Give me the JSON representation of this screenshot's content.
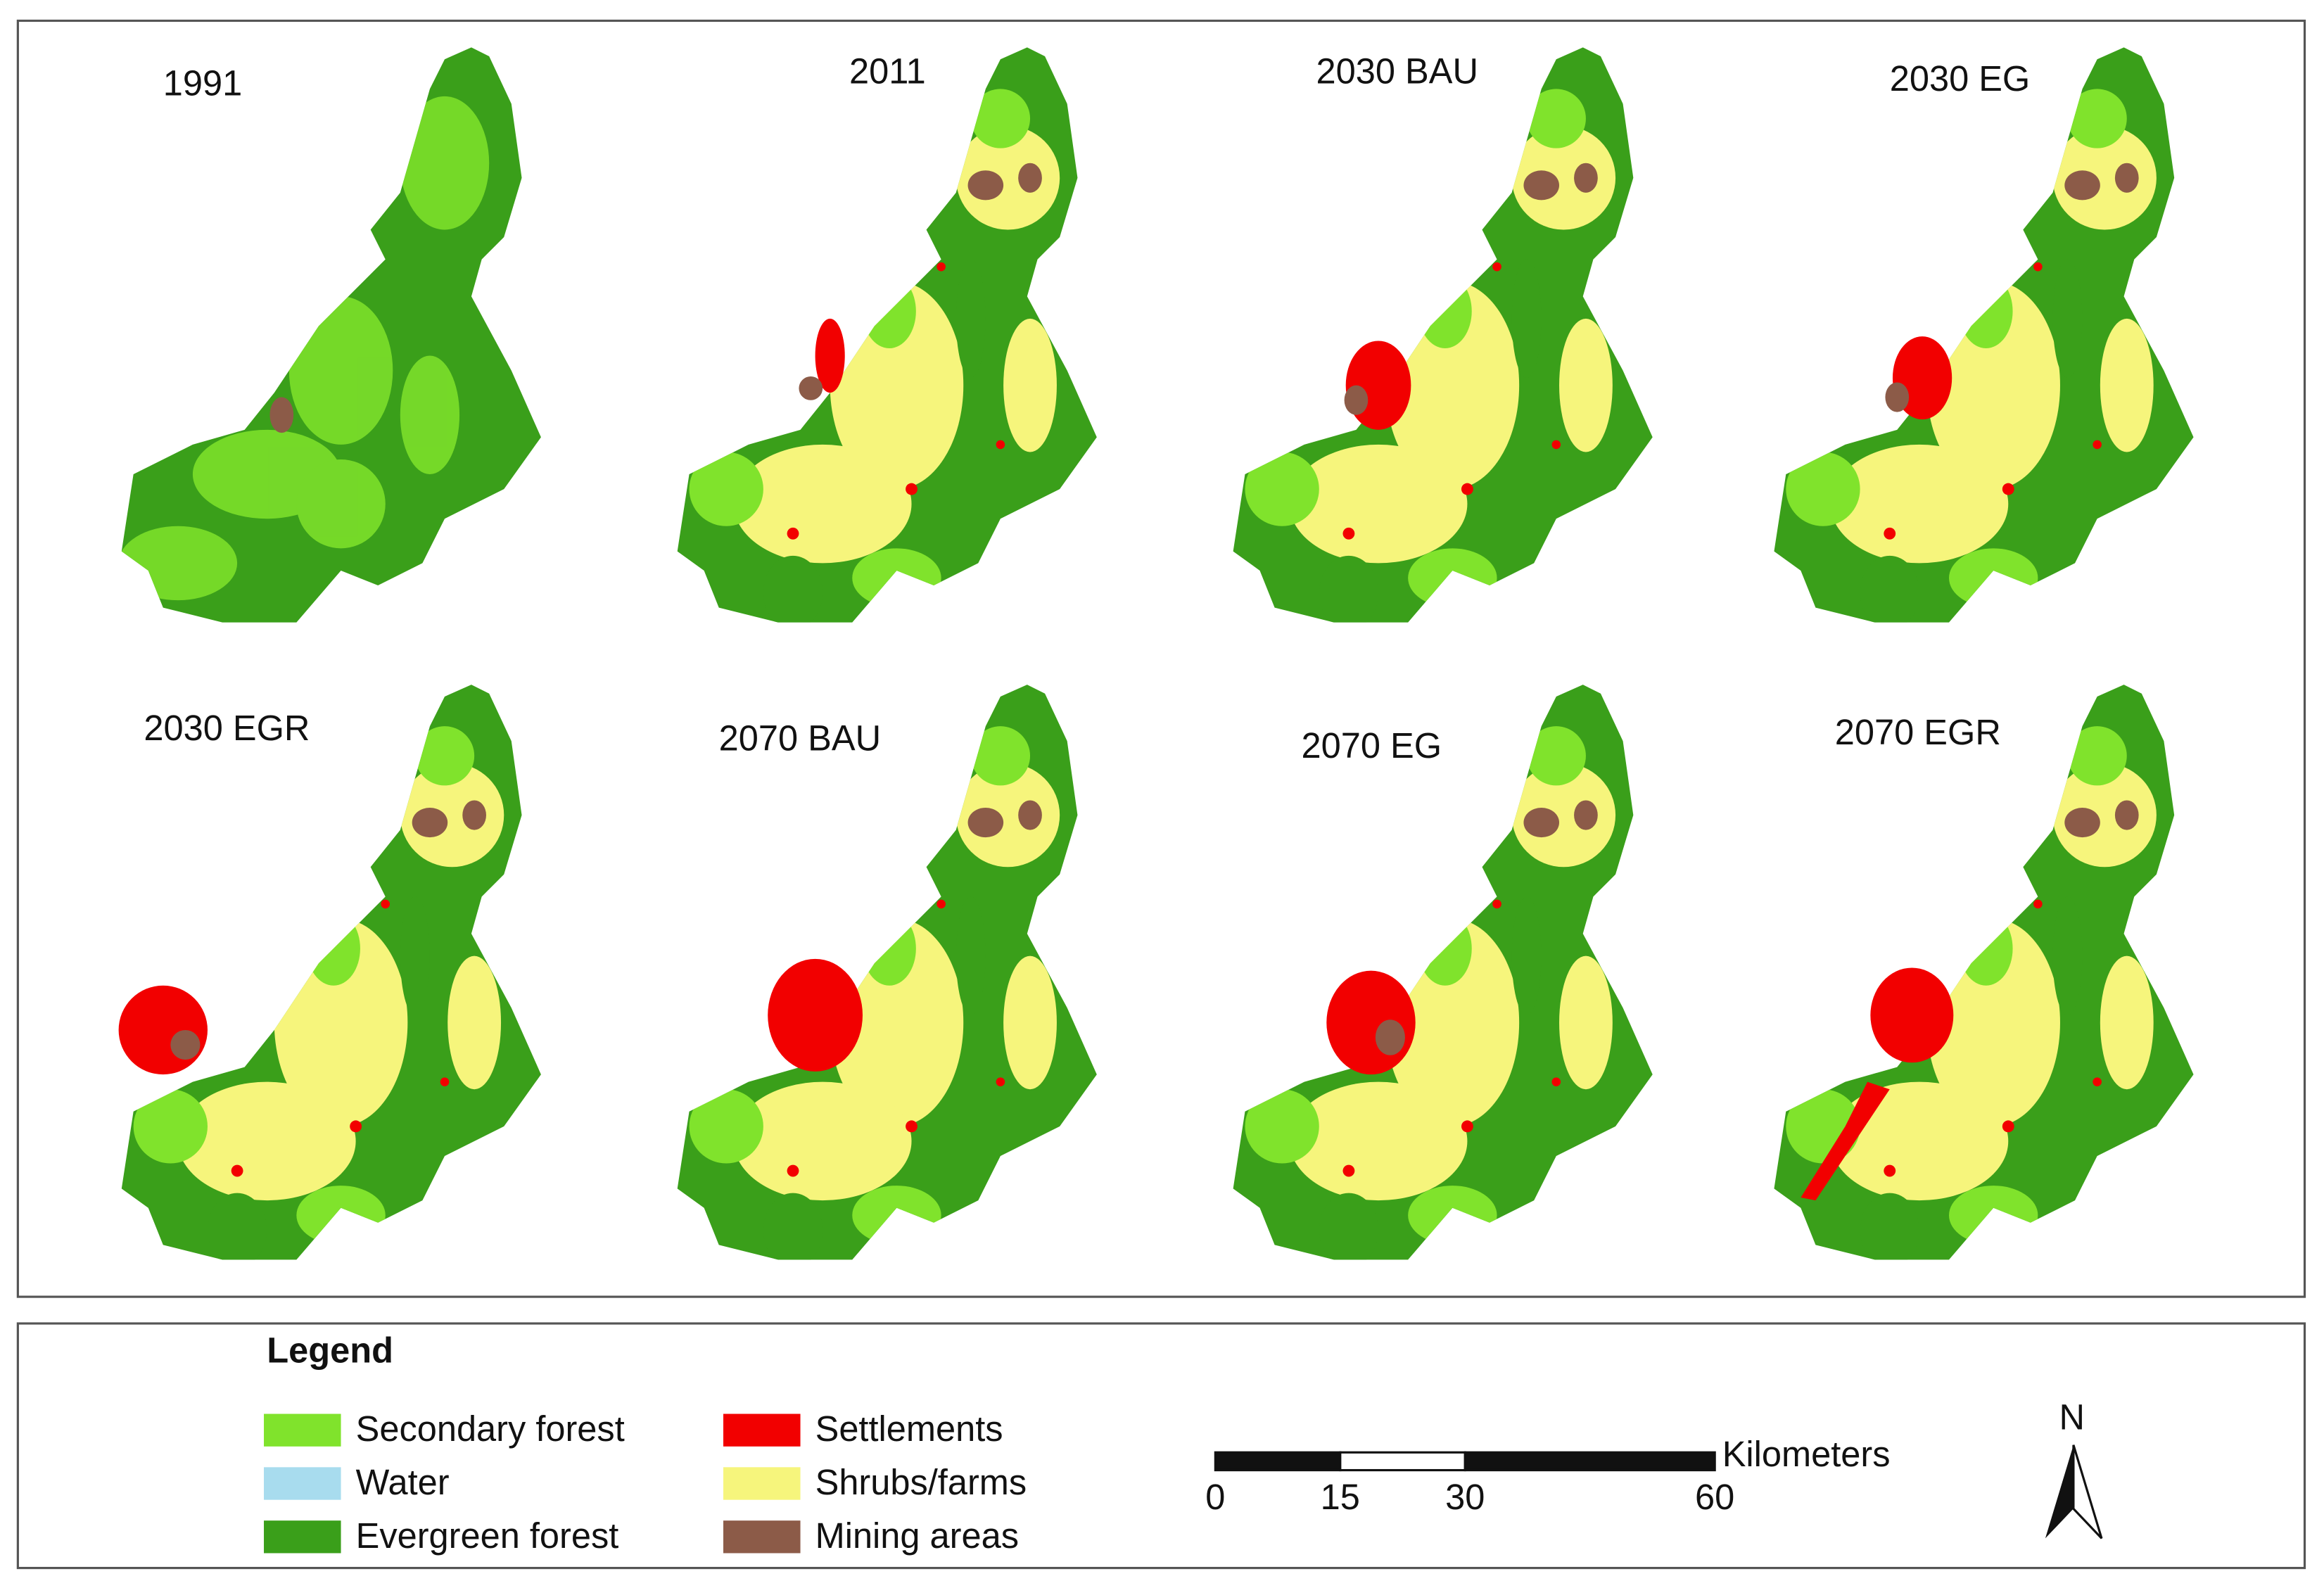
{
  "panels": [
    {
      "title": "1991"
    },
    {
      "title": "2011"
    },
    {
      "title": "2030 BAU"
    },
    {
      "title": "2030 EG"
    },
    {
      "title": "2030 EGR"
    },
    {
      "title": "2070 BAU"
    },
    {
      "title": "2070 EG"
    },
    {
      "title": "2070 EGR"
    }
  ],
  "legend": {
    "title": "Legend",
    "items": [
      {
        "label": "Secondary forest",
        "color": "#80e32c"
      },
      {
        "label": "Water",
        "color": "#a8dcee"
      },
      {
        "label": "Evergreen forest",
        "color": "#3a9f1a"
      },
      {
        "label": "Settlements",
        "color": "#f20000"
      },
      {
        "label": "Shrubs/farms",
        "color": "#f6f57c"
      },
      {
        "label": "Mining areas",
        "color": "#8c5b48"
      }
    ]
  },
  "scale_bar": {
    "unit": "Kilometers",
    "ticks": [
      0,
      15,
      30,
      60
    ]
  },
  "north_arrow": {
    "label": "N"
  }
}
